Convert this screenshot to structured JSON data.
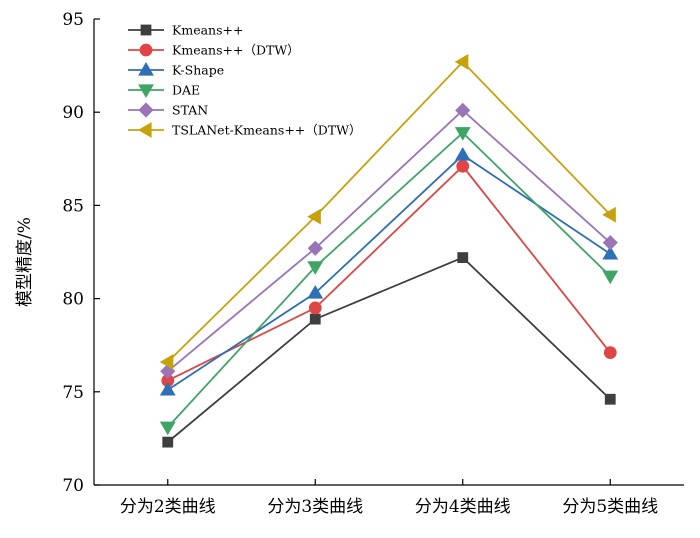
{
  "chart_data": {
    "type": "line",
    "title": "",
    "xlabel": "",
    "ylabel": "模型精度/%",
    "categories": [
      "分为2类曲线",
      "分为3类曲线",
      "分为4类曲线",
      "分为5类曲线"
    ],
    "ylim": [
      70,
      95
    ],
    "yticks": [
      70,
      75,
      80,
      85,
      90,
      95
    ],
    "grid": false,
    "legend_position": "top-left",
    "series": [
      {
        "name": "Kmeans++",
        "values": [
          72.3,
          78.9,
          82.2,
          74.6
        ],
        "color": "#3f3f3f",
        "marker": "square"
      },
      {
        "name": "Kmeans++（DTW）",
        "values": [
          75.6,
          79.5,
          87.1,
          77.1
        ],
        "color": "#e04545",
        "marker": "circle"
      },
      {
        "name": "K-Shape",
        "values": [
          75.1,
          80.3,
          87.7,
          82.4
        ],
        "color": "#2f6fb6",
        "marker": "triangle-up"
      },
      {
        "name": "DAE",
        "values": [
          73.1,
          81.7,
          88.9,
          81.2
        ],
        "color": "#3ea566",
        "marker": "triangle-down"
      },
      {
        "name": "STAN",
        "values": [
          76.1,
          82.7,
          90.1,
          83.0
        ],
        "color": "#9a73b8",
        "marker": "diamond"
      },
      {
        "name": "TSLANet-Kmeans++（DTW）",
        "values": [
          76.6,
          84.4,
          92.7,
          84.5
        ],
        "color": "#c7a20a",
        "marker": "triangle-left"
      }
    ]
  }
}
